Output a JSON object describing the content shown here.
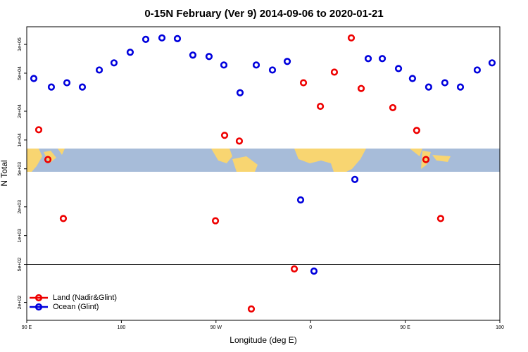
{
  "chart_data": {
    "type": "scatter",
    "title": "0-15N February (Ver 9)   2014-09-06 to 2020-01-21",
    "x_label": "Longitude (deg E)",
    "y_label": "N Total",
    "yscale": "log",
    "legend": "lower left",
    "reference_line": 500,
    "xlim": [
      90,
      540
    ],
    "ylim": [
      130,
      153000
    ],
    "xticks": [
      {
        "value": 90,
        "label": "90 E"
      },
      180,
      {
        "value": 270,
        "label": "90 W"
      },
      {
        "value": 360,
        "label": "0"
      },
      {
        "value": 450,
        "label": "90 E"
      },
      {
        "value": 540,
        "label": "180"
      }
    ],
    "yticks": [
      {
        "value": 200,
        "label": "2e+02"
      },
      {
        "value": 500,
        "label": "5e+02"
      },
      {
        "value": 1000,
        "label": "1e+03"
      },
      {
        "value": 2000,
        "label": "2e+03"
      },
      {
        "value": 5000,
        "label": "5e+03"
      },
      {
        "value": 10000,
        "label": "1e+04"
      },
      {
        "value": 20000,
        "label": "2e+04"
      },
      {
        "value": 50000,
        "label": "5e+04"
      },
      {
        "value": 100000,
        "label": "1e+05"
      }
    ],
    "series": [
      {
        "name": "Land (Nadir&Glint)",
        "color": "#ee0000",
        "x": [
          101.4,
          110.1,
          124.8,
          269.5,
          278.2,
          292.2,
          303.6,
          344.5,
          353.2,
          369.3,
          382.6,
          398.7,
          408.1,
          438.2,
          460.9,
          469.7,
          483.7
        ],
        "values": [
          12800,
          6250,
          1510,
          1430,
          11200,
          9750,
          171,
          448,
          39700,
          22500,
          51300,
          117000,
          34600,
          21800,
          12600,
          6250,
          1510
        ]
      },
      {
        "name": "Ocean (Glint)",
        "color": "#0000dd",
        "x": [
          96.7,
          113.4,
          128.2,
          142.9,
          159,
          173,
          188.4,
          203.2,
          218.6,
          233.3,
          248,
          263.4,
          277.5,
          292.9,
          308.3,
          323.7,
          337.8,
          350.5,
          363.2,
          402.1,
          414.8,
          428.2,
          443.6,
          456.9,
          472.3,
          487.7,
          502.5,
          518.5,
          532.6
        ],
        "values": [
          44000,
          35800,
          39700,
          35800,
          54000,
          64100,
          82800,
          113000,
          117000,
          115000,
          77300,
          74700,
          60900,
          31200,
          60900,
          54000,
          66400,
          2360,
          425,
          3870,
          71000,
          71000,
          55900,
          44000,
          35800,
          39700,
          35800,
          54000,
          64100
        ]
      }
    ]
  }
}
